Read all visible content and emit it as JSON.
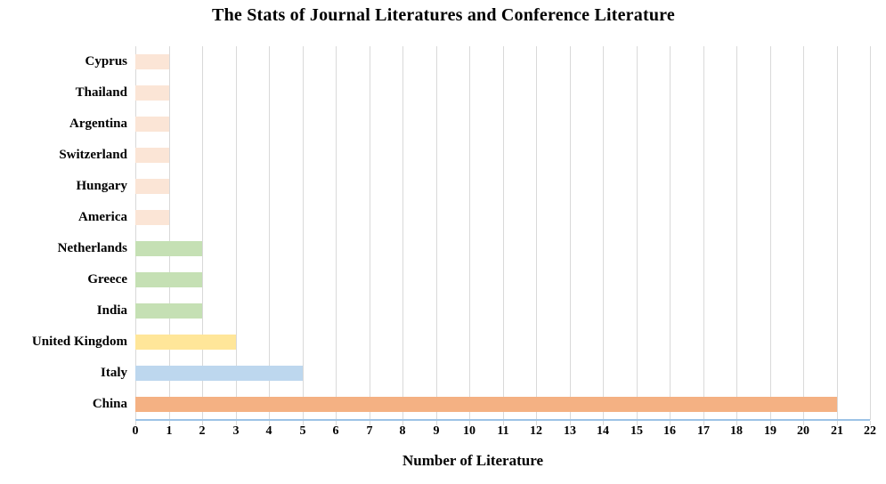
{
  "chart_data": {
    "type": "bar",
    "orientation": "horizontal",
    "title": "The Stats of Journal Literatures and Conference Literature",
    "xlabel": "Number of Literature",
    "ylabel": "",
    "categories": [
      "Cyprus",
      "Thailand",
      "Argentina",
      "Switzerland",
      "Hungary",
      "America",
      "Netherlands",
      "Greece",
      "India",
      "United Kingdom",
      "Italy",
      "China"
    ],
    "values": [
      1,
      1,
      1,
      1,
      1,
      1,
      2,
      2,
      2,
      3,
      5,
      21
    ],
    "bar_colors": [
      "#fbe5d6",
      "#fbe5d6",
      "#fbe5d6",
      "#fbe5d6",
      "#fbe5d6",
      "#fbe5d6",
      "#c5e0b4",
      "#c5e0b4",
      "#c5e0b4",
      "#ffe699",
      "#bdd7ee",
      "#f4b183"
    ],
    "xlim": [
      0,
      22
    ],
    "xticks": [
      0,
      1,
      2,
      3,
      4,
      5,
      6,
      7,
      8,
      9,
      10,
      11,
      12,
      13,
      14,
      15,
      16,
      17,
      18,
      19,
      20,
      21,
      22
    ],
    "grid": true,
    "legend_position": "none",
    "colors": {
      "gridline": "#d9d9d9",
      "axis_line": "#9dc3e6",
      "text": "#000000",
      "background": "#ffffff"
    }
  }
}
